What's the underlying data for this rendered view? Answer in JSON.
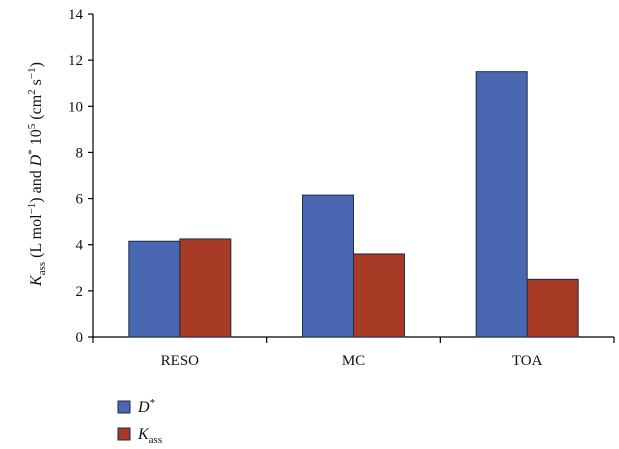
{
  "chart_data": {
    "type": "bar",
    "categories": [
      "RESO",
      "MC",
      "TOA"
    ],
    "series": [
      {
        "name": "D*",
        "name_main": "D",
        "name_sup": "*",
        "name_sub": "",
        "color": "#4a67b2",
        "values": [
          4.15,
          6.15,
          11.5
        ]
      },
      {
        "name": "Kass",
        "name_main": "K",
        "name_sup": "",
        "name_sub": "ass",
        "color": "#a63a24",
        "values": [
          4.25,
          3.6,
          2.5
        ]
      }
    ],
    "ylim": [
      0,
      14
    ],
    "yticks": [
      0,
      2,
      4,
      6,
      8,
      10,
      12,
      14
    ],
    "title": "",
    "xlabel": "",
    "ylabel": "Kass (L mol−1) and D* 105 (cm2 s−1)",
    "ylabel_parts": {
      "k": "K",
      "k_sub": "ass",
      "p1": " (L mol",
      "p1_sup": "−1",
      "p2": ") and ",
      "d": "D",
      "d_sup": "*",
      "p3": " 10",
      "p3_sup": "5",
      "p4": " (cm",
      "p4_sup": "2",
      "p5": " s",
      "p5_sup": "−1",
      "p6": ")"
    },
    "grid": false,
    "legend_position": "bottom-left"
  }
}
